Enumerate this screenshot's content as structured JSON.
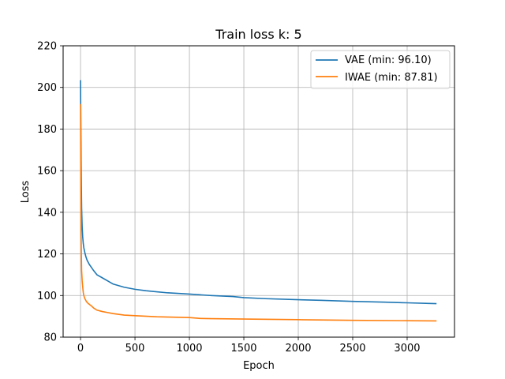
{
  "chart_data": {
    "type": "line",
    "title": "Train loss k: 5",
    "xlabel": "Epoch",
    "ylabel": "Loss",
    "xlim": [
      -160,
      3435
    ],
    "ylim": [
      80,
      220
    ],
    "xticks": [
      0,
      500,
      1000,
      1500,
      2000,
      2500,
      3000
    ],
    "yticks": [
      80,
      100,
      120,
      140,
      160,
      180,
      200,
      220
    ],
    "grid": true,
    "legend_position": "top-right",
    "series": [
      {
        "name": "VAE (min: 96.10)",
        "color": "#1f77b4",
        "x": [
          0,
          1,
          3,
          5,
          8,
          10,
          15,
          20,
          25,
          30,
          40,
          50,
          60,
          80,
          100,
          120,
          150,
          200,
          250,
          300,
          400,
          500,
          600,
          700,
          800,
          1000,
          1200,
          1400,
          1500,
          1700,
          2000,
          2200,
          2500,
          2800,
          3000,
          3200,
          3270
        ],
        "y": [
          203.5,
          195,
          180,
          165,
          150,
          142,
          133,
          128,
          125,
          123,
          120.5,
          118.5,
          117,
          115,
          113.5,
          112,
          110,
          108.5,
          107,
          105.5,
          104,
          103,
          102.3,
          101.8,
          101.3,
          100.7,
          100,
          99.5,
          99,
          98.5,
          98,
          97.7,
          97.2,
          96.8,
          96.5,
          96.2,
          96.1
        ]
      },
      {
        "name": "IWAE (min: 87.81)",
        "color": "#ff7f0e",
        "x": [
          0,
          1,
          3,
          5,
          8,
          10,
          15,
          20,
          25,
          30,
          40,
          50,
          60,
          80,
          100,
          120,
          150,
          200,
          250,
          300,
          400,
          500,
          700,
          1000,
          1100,
          1200,
          1500,
          2000,
          2500,
          3000,
          3270
        ],
        "y": [
          192,
          175,
          150,
          130,
          118,
          112,
          107,
          104,
          101.5,
          100,
          98.5,
          97.5,
          96.7,
          95.8,
          95,
          94,
          93,
          92.3,
          91.8,
          91.3,
          90.6,
          90.3,
          89.8,
          89.4,
          89,
          88.9,
          88.7,
          88.4,
          88.1,
          87.9,
          87.81
        ]
      }
    ]
  }
}
